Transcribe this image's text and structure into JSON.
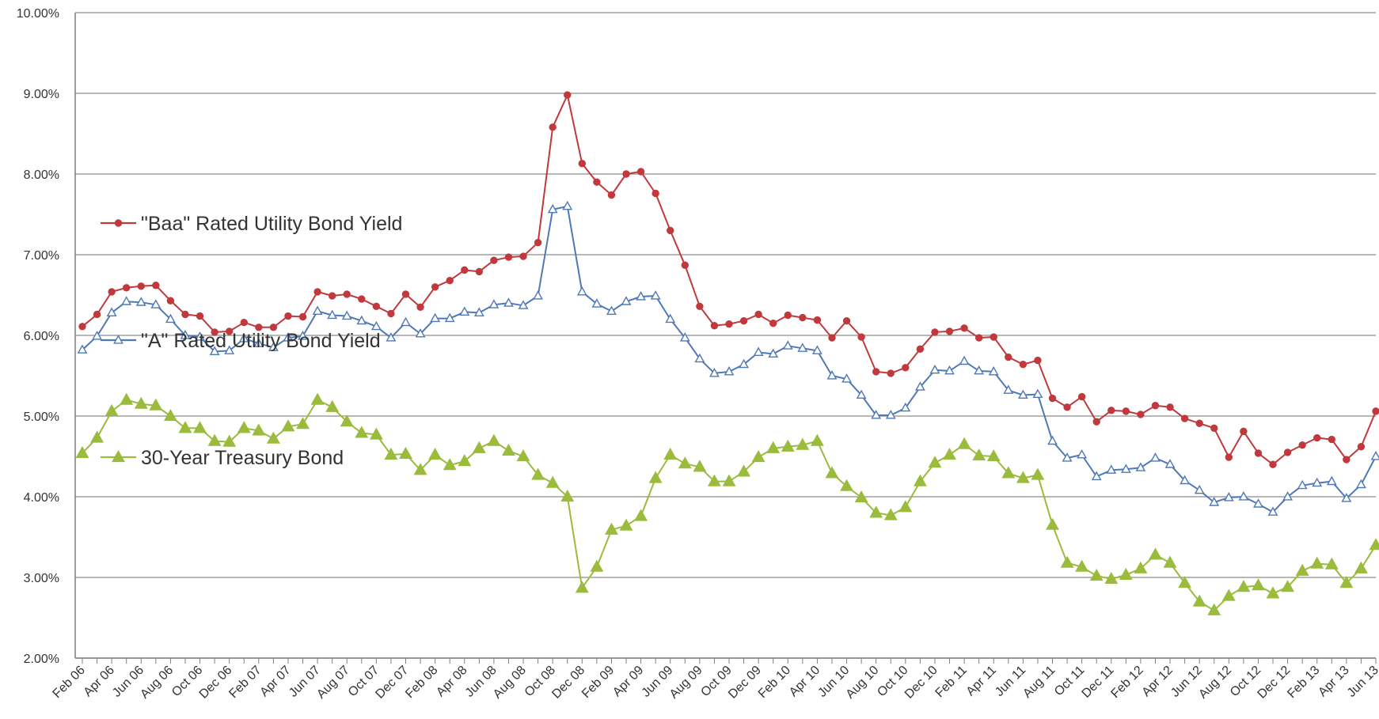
{
  "chart_data": {
    "type": "line",
    "title": "",
    "xlabel": "",
    "ylabel": "",
    "ylim": [
      2.0,
      10.0
    ],
    "y_tick_values": [
      2,
      3,
      4,
      5,
      6,
      7,
      8,
      9,
      10
    ],
    "y_tick_labels": [
      "2.00%",
      "3.00%",
      "4.00%",
      "5.00%",
      "6.00%",
      "7.00%",
      "8.00%",
      "9.00%",
      "10.00%"
    ],
    "x": [
      "Feb 06",
      "Mar 06",
      "Apr 06",
      "May 06",
      "Jun 06",
      "Jul 06",
      "Aug 06",
      "Sep 06",
      "Oct 06",
      "Nov 06",
      "Dec 06",
      "Jan 07",
      "Feb 07",
      "Mar 07",
      "Apr 07",
      "May 07",
      "Jun 07",
      "Jul 07",
      "Aug 07",
      "Sep 07",
      "Oct 07",
      "Nov 07",
      "Dec 07",
      "Jan 08",
      "Feb 08",
      "Mar 08",
      "Apr 08",
      "May 08",
      "Jun 08",
      "Jul 08",
      "Aug 08",
      "Sep 08",
      "Oct 08",
      "Nov 08",
      "Dec 08",
      "Jan 09",
      "Feb 09",
      "Mar 09",
      "Apr 09",
      "May 09",
      "Jun 09",
      "Jul 09",
      "Aug 09",
      "Sep 09",
      "Oct 09",
      "Nov 09",
      "Dec 09",
      "Jan 10",
      "Feb 10",
      "Mar 10",
      "Apr 10",
      "May 10",
      "Jun 10",
      "Jul 10",
      "Aug 10",
      "Sep 10",
      "Oct 10",
      "Nov 10",
      "Dec 10",
      "Jan 11",
      "Feb 11",
      "Mar 11",
      "Apr 11",
      "May 11",
      "Jun 11",
      "Jul 11",
      "Aug 11",
      "Sep 11",
      "Oct 11",
      "Nov 11",
      "Dec 11",
      "Jan 12",
      "Feb 12",
      "Mar 12",
      "Apr 12",
      "May 12",
      "Jun 12",
      "Jul 12",
      "Aug 12",
      "Sep 12",
      "Oct 12",
      "Nov 12",
      "Dec 12",
      "Jan 13",
      "Feb 13",
      "Mar 13",
      "Apr 13",
      "May 13",
      "Jun 13"
    ],
    "x_tick_labels": [
      "Feb 06",
      "Apr 06",
      "Jun 06",
      "Aug 06",
      "Oct 06",
      "Dec 06",
      "Feb 07",
      "Apr 07",
      "Jun 07",
      "Aug 07",
      "Oct 07",
      "Dec 07",
      "Feb 08",
      "Apr 08",
      "Jun 08",
      "Aug 08",
      "Oct 08",
      "Dec 08",
      "Feb 09",
      "Apr 09",
      "Jun 09",
      "Aug 09",
      "Oct 09",
      "Dec 09",
      "Feb 10",
      "Apr 10",
      "Jun 10",
      "Aug 10",
      "Oct 10",
      "Dec 10",
      "Feb 11",
      "Apr 11",
      "Jun 11",
      "Aug 11",
      "Oct 11",
      "Dec 11",
      "Feb 12",
      "Apr 12",
      "Jun 12",
      "Aug 12",
      "Oct 12",
      "Dec 12",
      "Feb 13",
      "Apr 13",
      "Jun 13"
    ],
    "grid": true,
    "legend_placement": "left-inside",
    "series": [
      {
        "name": "\"Baa\" Rated Utility Bond Yield",
        "color": "#c0393d",
        "marker": "circle",
        "values": [
          6.11,
          6.26,
          6.54,
          6.59,
          6.61,
          6.62,
          6.43,
          6.26,
          6.24,
          6.04,
          6.05,
          6.16,
          6.1,
          6.1,
          6.24,
          6.23,
          6.54,
          6.49,
          6.51,
          6.45,
          6.36,
          6.27,
          6.51,
          6.35,
          6.6,
          6.68,
          6.81,
          6.79,
          6.93,
          6.97,
          6.98,
          7.15,
          8.58,
          8.98,
          8.13,
          7.9,
          7.74,
          8.0,
          8.03,
          7.76,
          7.3,
          6.87,
          6.36,
          6.12,
          6.14,
          6.18,
          6.26,
          6.15,
          6.25,
          6.22,
          6.19,
          5.97,
          6.18,
          5.98,
          5.55,
          5.53,
          5.6,
          5.83,
          6.04,
          6.05,
          6.09,
          5.97,
          5.98,
          5.73,
          5.64,
          5.69,
          5.22,
          5.11,
          5.24,
          4.93,
          5.07,
          5.06,
          5.02,
          5.13,
          5.11,
          4.97,
          4.91,
          4.85,
          4.49,
          4.81,
          4.54,
          4.4,
          4.55,
          4.64,
          4.73,
          4.71,
          4.46,
          4.62,
          5.06
        ]
      },
      {
        "name": "\"A\" Rated Utility Bond Yield",
        "color": "#4f78b8",
        "marker": "triangle-open",
        "values": [
          5.82,
          5.99,
          6.28,
          6.42,
          6.41,
          6.38,
          6.2,
          6.0,
          5.98,
          5.8,
          5.81,
          5.96,
          5.9,
          5.85,
          5.97,
          5.99,
          6.3,
          6.25,
          6.24,
          6.18,
          6.11,
          5.97,
          6.16,
          6.02,
          6.21,
          6.21,
          6.29,
          6.28,
          6.38,
          6.4,
          6.37,
          6.49,
          7.56,
          7.6,
          6.54,
          6.39,
          6.3,
          6.42,
          6.48,
          6.49,
          6.2,
          5.97,
          5.71,
          5.53,
          5.55,
          5.64,
          5.79,
          5.77,
          5.87,
          5.84,
          5.81,
          5.5,
          5.46,
          5.26,
          5.01,
          5.01,
          5.1,
          5.36,
          5.57,
          5.56,
          5.68,
          5.56,
          5.55,
          5.32,
          5.26,
          5.27,
          4.69,
          4.48,
          4.52,
          4.25,
          4.33,
          4.34,
          4.36,
          4.48,
          4.4,
          4.2,
          4.08,
          3.93,
          3.99,
          4.0,
          3.91,
          3.81,
          4.0,
          4.14,
          4.17,
          4.19,
          3.98,
          4.15,
          4.5
        ]
      },
      {
        "name": "30-Year Treasury Bond",
        "color": "#9bbb3c",
        "marker": "triangle",
        "values": [
          4.54,
          4.73,
          5.06,
          5.2,
          5.15,
          5.13,
          5.0,
          4.85,
          4.85,
          4.69,
          4.68,
          4.85,
          4.82,
          4.72,
          4.87,
          4.9,
          5.2,
          5.11,
          4.93,
          4.79,
          4.77,
          4.52,
          4.53,
          4.33,
          4.52,
          4.39,
          4.44,
          4.6,
          4.69,
          4.57,
          4.5,
          4.27,
          4.17,
          4.0,
          2.87,
          3.13,
          3.59,
          3.64,
          3.76,
          4.23,
          4.52,
          4.41,
          4.37,
          4.19,
          4.19,
          4.31,
          4.49,
          4.6,
          4.62,
          4.64,
          4.69,
          4.29,
          4.13,
          3.99,
          3.8,
          3.77,
          3.87,
          4.19,
          4.42,
          4.52,
          4.65,
          4.51,
          4.5,
          4.29,
          4.23,
          4.27,
          3.65,
          3.18,
          3.13,
          3.02,
          2.98,
          3.03,
          3.11,
          3.28,
          3.18,
          2.93,
          2.7,
          2.59,
          2.77,
          2.88,
          2.9,
          2.8,
          2.88,
          3.08,
          3.17,
          3.16,
          2.93,
          3.11,
          3.4
        ]
      }
    ]
  }
}
